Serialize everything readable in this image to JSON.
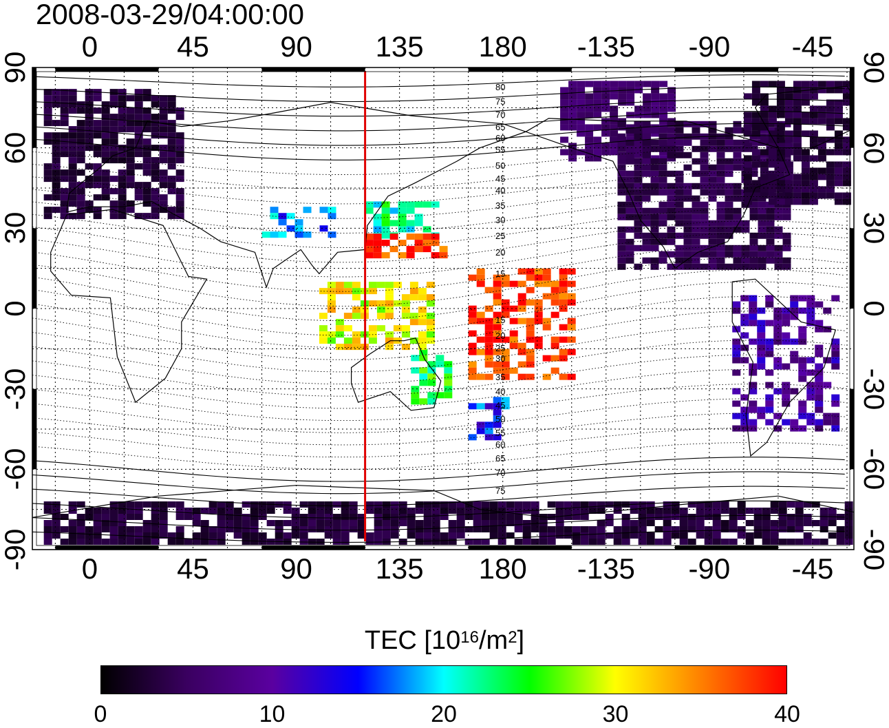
{
  "title": "2008-03-29/04:00:00",
  "map": {
    "top_lon_ticks": [
      "0",
      "45",
      "90",
      "135",
      "180",
      "-135",
      "-90",
      "-45"
    ],
    "bottom_lon_ticks": [
      "0",
      "45",
      "90",
      "135",
      "180",
      "-135",
      "-90",
      "-45"
    ],
    "left_lat_ticks": [
      "90",
      "60",
      "30",
      "0",
      "-30",
      "-60",
      "-90"
    ],
    "right_lat_ticks": [
      "90",
      "60",
      "30",
      "0",
      "-30",
      "-60",
      "-90"
    ],
    "lon_ticks_deg": [
      0,
      45,
      90,
      135,
      180,
      225,
      270,
      315
    ],
    "lat_ticks_deg": [
      90,
      60,
      30,
      0,
      -30,
      -60,
      -90
    ],
    "lon_range": [
      -25,
      333
    ],
    "lat_range": [
      -90,
      90
    ],
    "meridian_marker_lon": 120,
    "marker_color": "#e00000",
    "magnetic_latitude_labels": [
      "80",
      "75",
      "70",
      "65",
      "60",
      "55",
      "50",
      "45",
      "40",
      "35",
      "30",
      "25",
      "20",
      "15",
      "15",
      "20",
      "25",
      "30",
      "35",
      "40",
      "45",
      "50",
      "55",
      "60",
      "65",
      "70",
      "75"
    ]
  },
  "colorbar": {
    "label_main": "TEC  [10",
    "label_exp1": "16",
    "label_mid": "/m",
    "label_exp2": "2",
    "label_end": "]",
    "min": 0,
    "max": 40,
    "ticks": [
      "0",
      "10",
      "20",
      "30",
      "40"
    ],
    "tick_values": [
      0,
      10,
      20,
      30,
      40
    ],
    "colors": [
      "#000000",
      "#3a0060",
      "#5a00a0",
      "#0000ff",
      "#00ffff",
      "#00ff00",
      "#ffff00",
      "#ff8000",
      "#ff0000"
    ]
  },
  "chart_data": {
    "type": "heatmap",
    "title": "2008-03-29/04:00:00",
    "xlabel": "",
    "ylabel": "",
    "xlim": [
      -25,
      333
    ],
    "ylim": [
      -90,
      90
    ],
    "colorbar_label": "TEC [10^16/m^2]",
    "clim": [
      0,
      40
    ],
    "regions": [
      {
        "lon_min": -20,
        "lon_max": 40,
        "lat_min": 35,
        "lat_max": 82,
        "tec": 3
      },
      {
        "lon_min": 205,
        "lon_max": 255,
        "lat_min": 55,
        "lat_max": 85,
        "tec": 6
      },
      {
        "lon_min": 230,
        "lon_max": 305,
        "lat_min": 15,
        "lat_max": 70,
        "tec": 4
      },
      {
        "lon_min": 285,
        "lon_max": 330,
        "lat_min": 40,
        "lat_max": 85,
        "tec": 3
      },
      {
        "lon_min": 280,
        "lon_max": 325,
        "lat_min": -45,
        "lat_max": 5,
        "tec": 9
      },
      {
        "lon_min": 75,
        "lon_max": 105,
        "lat_min": 28,
        "lat_max": 38,
        "tec": 17
      },
      {
        "lon_min": 120,
        "lon_max": 150,
        "lat_min": 28,
        "lat_max": 40,
        "tec": 22
      },
      {
        "lon_min": 120,
        "lon_max": 155,
        "lat_min": 20,
        "lat_max": 28,
        "tec": 38
      },
      {
        "lon_min": 165,
        "lon_max": 210,
        "lat_min": -25,
        "lat_max": 15,
        "tec": 38
      },
      {
        "lon_min": 140,
        "lon_max": 155,
        "lat_min": -35,
        "lat_max": -15,
        "tec": 24
      },
      {
        "lon_min": 165,
        "lon_max": 180,
        "lat_min": -48,
        "lat_max": -33,
        "tec": 15
      },
      {
        "lon_min": 100,
        "lon_max": 150,
        "lat_min": -15,
        "lat_max": 10,
        "tec": 30
      },
      {
        "lon_min": -20,
        "lon_max": 330,
        "lat_min": -88,
        "lat_max": -72,
        "tec": 3
      }
    ]
  }
}
